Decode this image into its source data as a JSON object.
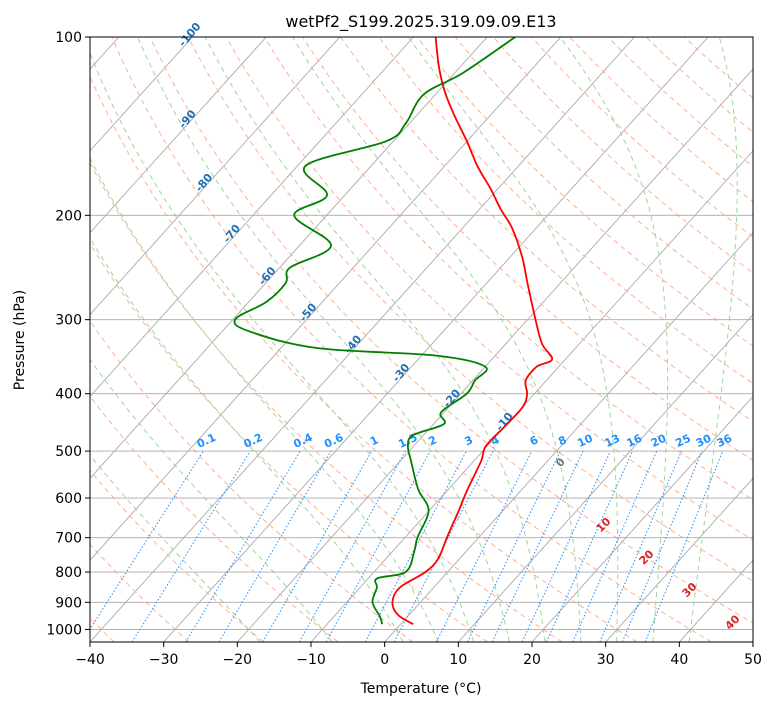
{
  "chart_data": {
    "type": "line",
    "diagram": "skew-t log-p",
    "title": "wetPf2_S199.2025.319.09.09.E13",
    "xlabel": "Temperature (°C)",
    "ylabel": "Pressure (hPa)",
    "xlim": [
      -40,
      50
    ],
    "ylim": [
      1050,
      100
    ],
    "y_scale": "log",
    "x_ticks": [
      -40,
      -30,
      -20,
      -10,
      0,
      10,
      20,
      30,
      40,
      50
    ],
    "x_tick_labels": [
      "−40",
      "−30",
      "−20",
      "−10",
      "0",
      "10",
      "20",
      "30",
      "40",
      "50"
    ],
    "y_ticks": [
      100,
      200,
      300,
      400,
      500,
      600,
      700,
      800,
      900,
      1000
    ],
    "y_tick_labels": [
      "100",
      "200",
      "300",
      "400",
      "500",
      "600",
      "700",
      "800",
      "900",
      "1000"
    ],
    "grid": true,
    "series": [
      {
        "role": "temperature",
        "color": "#ff0000",
        "points": [
          [
            1.7,
            980
          ],
          [
            -1.5,
            945
          ],
          [
            -3.8,
            900
          ],
          [
            -4.6,
            850
          ],
          [
            -3.0,
            800
          ],
          [
            -2.9,
            760
          ],
          [
            -4.3,
            700
          ],
          [
            -6.0,
            630
          ],
          [
            -7.4,
            580
          ],
          [
            -9.0,
            520
          ],
          [
            -10.2,
            490
          ],
          [
            -10.0,
            450
          ],
          [
            -10.0,
            420
          ],
          [
            -11.0,
            400
          ],
          [
            -12.8,
            380
          ],
          [
            -13.0,
            360
          ],
          [
            -11.8,
            350
          ],
          [
            -15.0,
            330
          ],
          [
            -18.9,
            300
          ],
          [
            -24.5,
            260
          ],
          [
            -28.4,
            235
          ],
          [
            -33.3,
            210
          ],
          [
            -37.2,
            195
          ],
          [
            -41.1,
            180
          ],
          [
            -45.6,
            165
          ],
          [
            -50.0,
            150
          ],
          [
            -55.1,
            135
          ],
          [
            -59.3,
            123
          ],
          [
            -63.0,
            112
          ],
          [
            -67.0,
            100
          ]
        ]
      },
      {
        "role": "dewpoint",
        "color": "#008000",
        "points": [
          [
            -2.5,
            980
          ],
          [
            -3.8,
            950
          ],
          [
            -6.5,
            900
          ],
          [
            -7.7,
            850
          ],
          [
            -8.8,
            820
          ],
          [
            -5.7,
            800
          ],
          [
            -7.0,
            740
          ],
          [
            -8.3,
            700
          ],
          [
            -10.1,
            630
          ],
          [
            -14.1,
            580
          ],
          [
            -18.5,
            520
          ],
          [
            -20.8,
            490
          ],
          [
            -21.4,
            470
          ],
          [
            -18.6,
            450
          ],
          [
            -20.4,
            430
          ],
          [
            -19.2,
            400
          ],
          [
            -19.7,
            380
          ],
          [
            -20.0,
            360
          ],
          [
            -28.0,
            345
          ],
          [
            -45.0,
            335
          ],
          [
            -55.9,
            315
          ],
          [
            -59.7,
            300
          ],
          [
            -57.6,
            280
          ],
          [
            -57.3,
            260
          ],
          [
            -58.6,
            245
          ],
          [
            -55.7,
            225
          ],
          [
            -64.4,
            200
          ],
          [
            -62.4,
            185
          ],
          [
            -68.9,
            165
          ],
          [
            -61.0,
            150
          ],
          [
            -60.5,
            140
          ],
          [
            -61.6,
            125
          ],
          [
            -58.9,
            115
          ],
          [
            -56.2,
            100
          ]
        ]
      }
    ],
    "dry_adiabat_labels": [
      "-100",
      "-90",
      "-80",
      "-70",
      "-60",
      "-50",
      "-40",
      "-30",
      "-20",
      "-10"
    ],
    "moist_adiabat_labels": [
      "0",
      "10",
      "20",
      "30",
      "40"
    ],
    "mixing_ratio_labels": [
      "0.1",
      "0.2",
      "0.4",
      "0.6",
      "1",
      "1.5",
      "2",
      "3",
      "4",
      "6",
      "8",
      "10",
      "13",
      "16",
      "20",
      "25",
      "30",
      "36"
    ],
    "colors": {
      "isotherm": "#aaaaaa",
      "dry_adiabat": "#ffb090",
      "moist_adiabat": "#9fd49f",
      "mixing_ratio": "#1e90ff",
      "isobar": "#aaaaaa"
    }
  }
}
